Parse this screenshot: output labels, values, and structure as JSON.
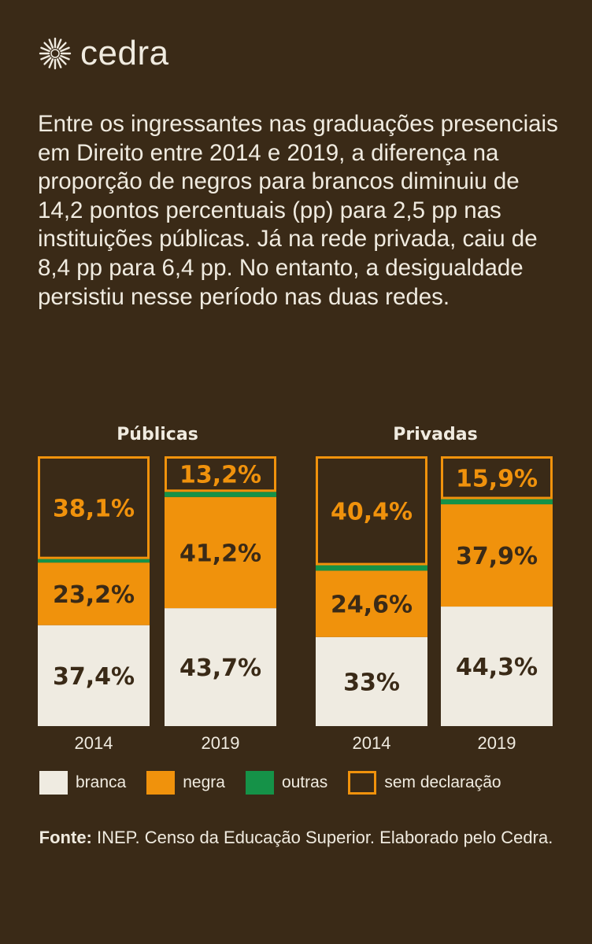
{
  "brand": {
    "name": "cedra"
  },
  "intro_text": "Entre os ingressantes nas graduações presenciais em Direito entre 2014 e 2019, a diferença na proporção de negros para brancos diminuiu de 14,2 pontos percentuais (pp) para 2,5 pp nas instituições públicas. Já na rede privada, caiu de 8,4 pp para 6,4 pp. No entanto, a desigualdade persistiu nesse período nas duas redes.",
  "colors": {
    "background": "#3a2a17",
    "branca": "#efebe1",
    "negra": "#f0920c",
    "outras": "#159248",
    "sem_declaracao": "#f0920c",
    "dark_text": "#3a2a17",
    "orange_text": "#f0920c",
    "light_text": "#f0ebe0"
  },
  "chart_data": [
    {
      "type": "bar",
      "stacked": true,
      "title": "Públicas",
      "categories": [
        "2014",
        "2019"
      ],
      "series": [
        {
          "name": "branca",
          "values": [
            37.4,
            43.7
          ],
          "labels": [
            "37,4%",
            "43,7%"
          ]
        },
        {
          "name": "negra",
          "values": [
            23.2,
            41.2
          ],
          "labels": [
            "23,2%",
            "41,2%"
          ]
        },
        {
          "name": "outras",
          "values": [
            1.3,
            1.9
          ],
          "labels": [
            "",
            ""
          ]
        },
        {
          "name": "sem declaração",
          "values": [
            38.1,
            13.2
          ],
          "labels": [
            "38,1%",
            "13,2%"
          ]
        }
      ]
    },
    {
      "type": "bar",
      "stacked": true,
      "title": "Privadas",
      "categories": [
        "2014",
        "2019"
      ],
      "series": [
        {
          "name": "branca",
          "values": [
            33,
            44.3
          ],
          "labels": [
            "33%",
            "44,3%"
          ]
        },
        {
          "name": "negra",
          "values": [
            24.6,
            37.9
          ],
          "labels": [
            "24,6%",
            "37,9%"
          ]
        },
        {
          "name": "outras",
          "values": [
            2.0,
            1.9
          ],
          "labels": [
            "",
            ""
          ]
        },
        {
          "name": "sem declaração",
          "values": [
            40.4,
            15.9
          ],
          "labels": [
            "40,4%",
            "15,9%"
          ]
        }
      ]
    }
  ],
  "legend": [
    {
      "key": "branca",
      "label": "branca"
    },
    {
      "key": "negra",
      "label": "negra"
    },
    {
      "key": "outras",
      "label": "outras"
    },
    {
      "key": "sem_declaracao",
      "label": "sem declaração"
    }
  ],
  "source": {
    "prefix": "Fonte:",
    "text": "INEP. Censo da Educação Superior. Elaborado pelo Cedra."
  }
}
